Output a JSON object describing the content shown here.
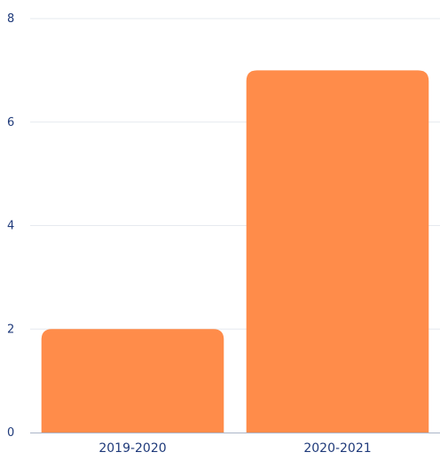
{
  "chart_data": {
    "type": "bar",
    "categories": [
      "2019-2020",
      "2020-2021"
    ],
    "values": [
      2,
      7
    ],
    "title": "",
    "xlabel": "",
    "ylabel": "",
    "ylim": [
      0,
      8
    ],
    "yticks": [
      0,
      2,
      4,
      6,
      8
    ],
    "grid": true,
    "legend": "none",
    "colors": {
      "bar": "#ff8c4a",
      "axis_text": "#1f3a7a",
      "grid": "#e6e9ef"
    }
  }
}
